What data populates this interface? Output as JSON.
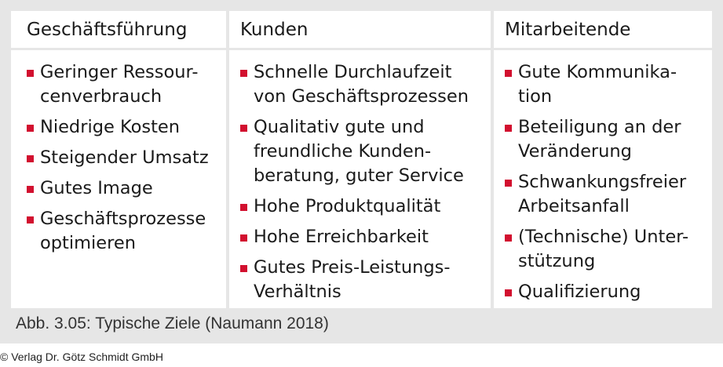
{
  "columns": [
    {
      "header": "Geschäftsführung",
      "items": [
        "Geringer Ressour-\ncenverbrauch",
        "Niedrige Kosten",
        "Steigender Umsatz",
        "Gutes Image",
        "Geschäftsprozesse\noptimieren"
      ]
    },
    {
      "header": "Kunden",
      "items": [
        "Schnelle Durchlaufzeit\nvon Geschäftsprozessen",
        "Qualitativ gute und\nfreundliche Kunden-\nberatung, guter Service",
        "Hohe Produktqualität",
        "Hohe Erreichbarkeit",
        "Gutes Preis-Leistungs-\nVerhältnis"
      ]
    },
    {
      "header": "Mitarbeitende",
      "items": [
        "Gute Kommunika-\ntion",
        "Beteiligung an der\nVeränderung",
        "Schwankungsfreier\nArbeitsanfall",
        "(Technische) Unter-\nstützung",
        "Qualifizierung"
      ]
    }
  ],
  "caption": "Abb. 3.05: Typische Ziele (Naumann 2018)",
  "copyright": "© Verlag Dr. Götz Schmidt GmbH",
  "colors": {
    "bullet": "#d2102f",
    "frame": "#e6e6e6"
  }
}
